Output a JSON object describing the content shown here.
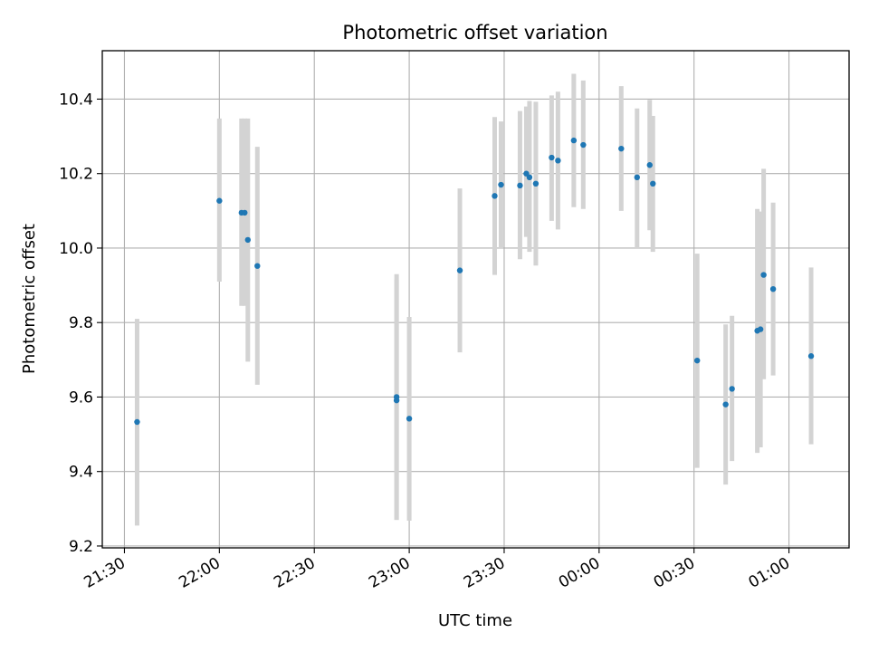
{
  "chart_data": {
    "type": "scatter",
    "title": "Photometric offset variation",
    "xlabel": "UTC time",
    "ylabel": "Photometric offset",
    "x_ticks": [
      "21:30",
      "22:00",
      "22:30",
      "23:00",
      "23:30",
      "00:00",
      "00:30",
      "01:00"
    ],
    "y_ticks": [
      "9.2",
      "9.4",
      "9.6",
      "9.8",
      "10.0",
      "10.2",
      "10.4"
    ],
    "xlim": [
      "21:23",
      "01:19"
    ],
    "ylim": [
      9.195,
      10.53
    ],
    "grid": true,
    "colors": {
      "point": "#1f77b4",
      "error_bar": "#d3d3d3",
      "grid": "#b0b0b0"
    },
    "points": [
      {
        "t": "21:34",
        "y": 9.533,
        "lo": 9.255,
        "hi": 9.81
      },
      {
        "t": "22:00",
        "y": 10.127,
        "lo": 9.91,
        "hi": 10.348
      },
      {
        "t": "22:07",
        "y": 10.095,
        "lo": 9.845,
        "hi": 10.348
      },
      {
        "t": "22:08",
        "y": 10.095,
        "lo": 9.845,
        "hi": 10.348
      },
      {
        "t": "22:09",
        "y": 10.022,
        "lo": 9.695,
        "hi": 10.348
      },
      {
        "t": "22:12",
        "y": 9.952,
        "lo": 9.633,
        "hi": 10.272
      },
      {
        "t": "22:56",
        "y": 9.6,
        "lo": 9.27,
        "hi": 9.93
      },
      {
        "t": "22:56",
        "y": 9.591,
        "lo": 9.27,
        "hi": 9.915
      },
      {
        "t": "23:00",
        "y": 9.542,
        "lo": 9.268,
        "hi": 9.815
      },
      {
        "t": "23:16",
        "y": 9.94,
        "lo": 9.72,
        "hi": 10.16
      },
      {
        "t": "23:27",
        "y": 10.14,
        "lo": 9.928,
        "hi": 10.352
      },
      {
        "t": "23:29",
        "y": 10.17,
        "lo": 10.0,
        "hi": 10.34
      },
      {
        "t": "23:35",
        "y": 10.168,
        "lo": 9.97,
        "hi": 10.368
      },
      {
        "t": "23:37",
        "y": 10.2,
        "lo": 10.03,
        "hi": 10.38
      },
      {
        "t": "23:38",
        "y": 10.19,
        "lo": 9.99,
        "hi": 10.395
      },
      {
        "t": "23:40",
        "y": 10.173,
        "lo": 9.953,
        "hi": 10.393
      },
      {
        "t": "23:45",
        "y": 10.243,
        "lo": 10.073,
        "hi": 10.41
      },
      {
        "t": "23:47",
        "y": 10.235,
        "lo": 10.05,
        "hi": 10.42
      },
      {
        "t": "23:52",
        "y": 10.289,
        "lo": 10.11,
        "hi": 10.468
      },
      {
        "t": "23:55",
        "y": 10.277,
        "lo": 10.105,
        "hi": 10.45
      },
      {
        "t": "00:07",
        "y": 10.267,
        "lo": 10.1,
        "hi": 10.435
      },
      {
        "t": "00:12",
        "y": 10.19,
        "lo": 10.0,
        "hi": 10.375
      },
      {
        "t": "00:16",
        "y": 10.223,
        "lo": 10.048,
        "hi": 10.398
      },
      {
        "t": "00:17",
        "y": 10.173,
        "lo": 9.99,
        "hi": 10.355
      },
      {
        "t": "00:31",
        "y": 9.698,
        "lo": 9.41,
        "hi": 9.985
      },
      {
        "t": "00:40",
        "y": 9.58,
        "lo": 9.365,
        "hi": 9.795
      },
      {
        "t": "00:42",
        "y": 9.622,
        "lo": 9.428,
        "hi": 9.818
      },
      {
        "t": "00:50",
        "y": 9.778,
        "lo": 9.45,
        "hi": 10.105
      },
      {
        "t": "00:51",
        "y": 9.782,
        "lo": 9.465,
        "hi": 10.098
      },
      {
        "t": "00:52",
        "y": 9.928,
        "lo": 9.648,
        "hi": 10.213
      },
      {
        "t": "00:55",
        "y": 9.89,
        "lo": 9.658,
        "hi": 10.122
      },
      {
        "t": "01:07",
        "y": 9.71,
        "lo": 9.473,
        "hi": 9.948
      }
    ]
  }
}
